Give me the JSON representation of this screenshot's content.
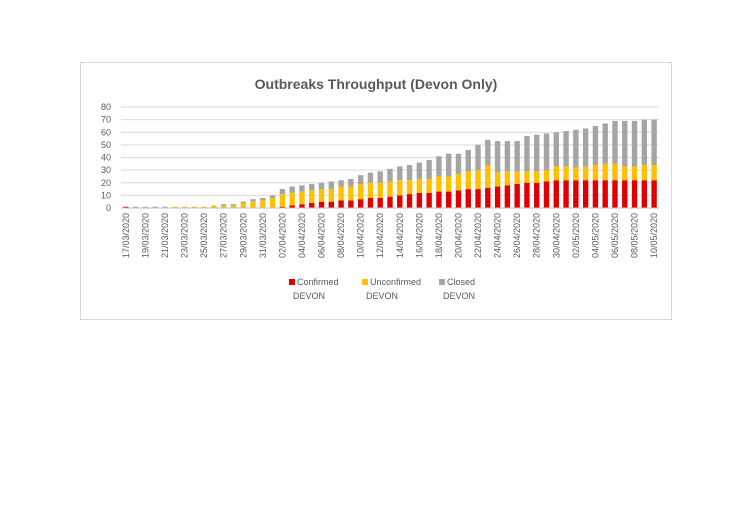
{
  "chart_data": {
    "type": "bar",
    "stacked": true,
    "title": "Outbreaks Throughput (Devon Only)",
    "xlabel": "",
    "ylabel": "",
    "ylim": [
      0,
      80
    ],
    "yticks": [
      0,
      10,
      20,
      30,
      40,
      50,
      60,
      70,
      80
    ],
    "grid": true,
    "legend_position": "bottom",
    "start_date": "2020-03-17",
    "categories": [
      "17/03/2020",
      "18/03/2020",
      "19/03/2020",
      "20/03/2020",
      "21/03/2020",
      "22/03/2020",
      "23/03/2020",
      "24/03/2020",
      "25/03/2020",
      "26/03/2020",
      "27/03/2020",
      "28/03/2020",
      "29/03/2020",
      "30/03/2020",
      "31/03/2020",
      "01/04/2020",
      "02/04/2020",
      "03/04/2020",
      "04/04/2020",
      "05/04/2020",
      "06/04/2020",
      "07/04/2020",
      "08/04/2020",
      "09/04/2020",
      "10/04/2020",
      "11/04/2020",
      "12/04/2020",
      "13/04/2020",
      "14/04/2020",
      "15/04/2020",
      "16/04/2020",
      "17/04/2020",
      "18/04/2020",
      "19/04/2020",
      "20/04/2020",
      "21/04/2020",
      "22/04/2020",
      "23/04/2020",
      "24/04/2020",
      "25/04/2020",
      "26/04/2020",
      "27/04/2020",
      "28/04/2020",
      "29/04/2020",
      "30/04/2020",
      "01/05/2020",
      "02/05/2020",
      "03/05/2020",
      "04/05/2020",
      "05/05/2020",
      "06/05/2020",
      "07/05/2020",
      "08/05/2020",
      "09/05/2020",
      "10/05/2020"
    ],
    "tick_labels": [
      "17/03/2020",
      "19/03/2020",
      "21/03/2020",
      "23/03/2020",
      "25/03/2020",
      "27/03/2020",
      "29/03/2020",
      "31/03/2020",
      "02/04/2020",
      "04/04/2020",
      "06/04/2020",
      "08/04/2020",
      "10/04/2020",
      "12/04/2020",
      "14/04/2020",
      "16/04/2020",
      "18/04/2020",
      "20/04/2020",
      "22/04/2020",
      "24/04/2020",
      "26/04/2020",
      "28/04/2020",
      "30/04/2020",
      "02/05/2020",
      "04/05/2020",
      "06/05/2020",
      "08/05/2020",
      "10/05/2020"
    ],
    "series": [
      {
        "name": "Confirmed DEVON",
        "name_lines": [
          "Confirmed",
          "DEVON"
        ],
        "color": "#e00000",
        "values": [
          1,
          0,
          0,
          0,
          0,
          0,
          0,
          0,
          0,
          0,
          0,
          0,
          0,
          0,
          0,
          0,
          1,
          2,
          3,
          4,
          5,
          5,
          6,
          6,
          7,
          8,
          8,
          9,
          10,
          11,
          12,
          12,
          13,
          13,
          14,
          15,
          15,
          16,
          17,
          18,
          19,
          20,
          20,
          21,
          22,
          22,
          22,
          22,
          22,
          22,
          22,
          22,
          22,
          22,
          22
        ]
      },
      {
        "name": "Unconfirmed DEVON",
        "name_lines": [
          "Unconfirmed",
          "DEVON"
        ],
        "color": "#ffc000",
        "values": [
          0,
          0,
          0,
          0,
          0,
          1,
          1,
          1,
          1,
          2,
          2,
          2,
          4,
          5,
          6,
          8,
          10,
          10,
          10,
          10,
          10,
          10,
          11,
          11,
          12,
          12,
          12,
          12,
          12,
          11,
          11,
          11,
          12,
          12,
          13,
          14,
          15,
          18,
          11,
          11,
          10,
          9,
          9,
          9,
          11,
          11,
          10,
          11,
          12,
          13,
          13,
          11,
          11,
          12,
          12
        ]
      },
      {
        "name": "Closed DEVON",
        "name_lines": [
          "Closed",
          "DEVON"
        ],
        "color": "#a5a5a5",
        "values": [
          0,
          1,
          1,
          1,
          1,
          0,
          0,
          0,
          0,
          0,
          1,
          1,
          1,
          2,
          2,
          2,
          4,
          5,
          5,
          5,
          5,
          6,
          5,
          6,
          7,
          8,
          9,
          10,
          11,
          12,
          13,
          15,
          16,
          18,
          16,
          17,
          20,
          20,
          25,
          24,
          24,
          28,
          29,
          29,
          27,
          28,
          30,
          30,
          31,
          32,
          34,
          36,
          36,
          36,
          36
        ]
      }
    ]
  }
}
